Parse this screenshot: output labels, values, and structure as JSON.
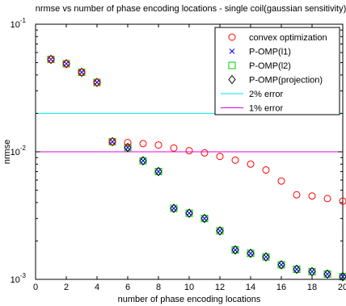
{
  "chart_data": {
    "type": "scatter",
    "title": "nrmse vs number of phase encoding locations - single coil(gaussian sensitivity)",
    "xlabel": "number of phase encoding locations",
    "ylabel": "nrmse",
    "xlim": [
      0,
      20
    ],
    "ylim": [
      0.001,
      0.1
    ],
    "yscale": "log",
    "x_ticks": [
      "0",
      "2",
      "4",
      "6",
      "8",
      "10",
      "12",
      "14",
      "16",
      "18",
      "20"
    ],
    "y_ticks": [
      {
        "base": "10",
        "exp": "-1",
        "value": 0.1
      },
      {
        "base": "10",
        "exp": "-2",
        "value": 0.01
      },
      {
        "base": "10",
        "exp": "-3",
        "value": 0.001
      }
    ],
    "grid": false,
    "legend_position": "top-right",
    "series": [
      {
        "name": "convex optimization",
        "marker": "circle",
        "color": "#ff0000",
        "x": [
          1,
          2,
          3,
          4,
          5,
          6,
          7,
          8,
          9,
          10,
          11,
          12,
          13,
          14,
          15,
          16,
          17,
          18,
          19,
          20
        ],
        "y": [
          0.053,
          0.049,
          0.042,
          0.035,
          0.012,
          0.0118,
          0.0116,
          0.0113,
          0.0107,
          0.0102,
          0.0098,
          0.0092,
          0.0086,
          0.008,
          0.0072,
          0.0059,
          0.0046,
          0.0045,
          0.0043,
          0.0041
        ]
      },
      {
        "name": "P-OMP(l1)",
        "marker": "x",
        "color": "#0000ff",
        "x": [
          1,
          2,
          3,
          4,
          5,
          6,
          7,
          8,
          9,
          10,
          11,
          12,
          13,
          14,
          15,
          16,
          17,
          18,
          19,
          20
        ],
        "y": [
          0.053,
          0.049,
          0.042,
          0.035,
          0.012,
          0.0108,
          0.0085,
          0.007,
          0.0036,
          0.0033,
          0.003,
          0.0024,
          0.0017,
          0.0016,
          0.0015,
          0.0013,
          0.0012,
          0.00115,
          0.0011,
          0.00105
        ]
      },
      {
        "name": "P-OMP(l2)",
        "marker": "square",
        "color": "#00cc00",
        "x": [
          1,
          2,
          3,
          4,
          5,
          6,
          7,
          8,
          9,
          10,
          11,
          12,
          13,
          14,
          15,
          16,
          17,
          18,
          19,
          20
        ],
        "y": [
          0.053,
          0.049,
          0.042,
          0.035,
          0.012,
          0.0108,
          0.0085,
          0.007,
          0.0036,
          0.0033,
          0.003,
          0.0024,
          0.0017,
          0.0016,
          0.0015,
          0.0013,
          0.0012,
          0.00115,
          0.0011,
          0.00105
        ]
      },
      {
        "name": "P-OMP(projection)",
        "marker": "diamond",
        "color": "#000000",
        "x": [
          1,
          2,
          3,
          4,
          5,
          6,
          7,
          8,
          9,
          10,
          11,
          12,
          13,
          14,
          15,
          16,
          17,
          18,
          19,
          20
        ],
        "y": [
          0.053,
          0.049,
          0.042,
          0.035,
          0.012,
          0.0108,
          0.0085,
          0.007,
          0.0036,
          0.0033,
          0.003,
          0.0024,
          0.0017,
          0.0016,
          0.0015,
          0.0013,
          0.0012,
          0.00115,
          0.0011,
          0.00105
        ]
      },
      {
        "name": "2% error",
        "marker": "line",
        "color": "#00e5e5",
        "y": 0.02
      },
      {
        "name": "1% error",
        "marker": "line",
        "color": "#e500e5",
        "y": 0.01
      }
    ]
  }
}
